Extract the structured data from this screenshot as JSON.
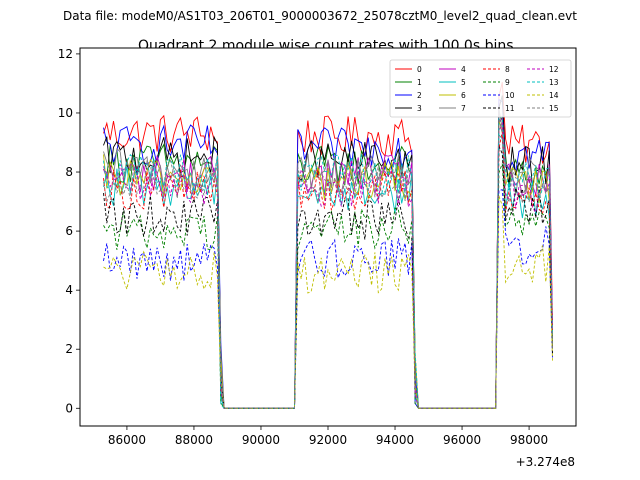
{
  "chart_data": {
    "type": "line",
    "suptitle": "Data file: modeM0/AS1T03_206T01_9000003672_25078cztM0_level2_quad_clean.evt",
    "title": "Quadrant 2 module wise count rates with 100.0s bins.",
    "xlabel": "",
    "ylabel": "",
    "x_offset_label": "+3.274e8",
    "xlim": [
      84600,
      99400
    ],
    "ylim": [
      -0.6,
      12.2
    ],
    "x_ticks": [
      86000,
      88000,
      90000,
      92000,
      94000,
      96000,
      98000
    ],
    "x_tick_labels": [
      "86000",
      "88000",
      "90000",
      "92000",
      "94000",
      "96000",
      "98000"
    ],
    "y_ticks": [
      0,
      2,
      4,
      6,
      8,
      10,
      12
    ],
    "y_tick_labels": [
      "0",
      "2",
      "4",
      "6",
      "8",
      "10",
      "12"
    ],
    "bin_seconds": 100,
    "segments": [
      {
        "start": 85300,
        "end": 88800
      },
      {
        "start": 91100,
        "end": 94600
      },
      {
        "start": 97100,
        "end": 98700
      }
    ],
    "gap_level": 0,
    "series": [
      {
        "name": "0",
        "color": "#ff0000",
        "dash": "solid",
        "base": [
          9.3,
          9.2,
          8.9
        ]
      },
      {
        "name": "1",
        "color": "#008000",
        "dash": "solid",
        "base": [
          8.3,
          8.2,
          7.9
        ]
      },
      {
        "name": "2",
        "color": "#0000ff",
        "dash": "solid",
        "base": [
          8.9,
          8.8,
          8.6
        ]
      },
      {
        "name": "3",
        "color": "#000000",
        "dash": "solid",
        "base": [
          8.5,
          8.4,
          8.2
        ]
      },
      {
        "name": "4",
        "color": "#bf00bf",
        "dash": "solid",
        "base": [
          7.9,
          7.9,
          7.6
        ]
      },
      {
        "name": "5",
        "color": "#00bfbf",
        "dash": "solid",
        "base": [
          7.5,
          7.3,
          7.1
        ]
      },
      {
        "name": "6",
        "color": "#bfbf00",
        "dash": "solid",
        "base": [
          7.8,
          7.7,
          7.5
        ]
      },
      {
        "name": "7",
        "color": "#808080",
        "dash": "solid",
        "base": [
          8.1,
          8.0,
          7.8
        ]
      },
      {
        "name": "8",
        "color": "#ff0000",
        "dash": "dashed",
        "base": [
          7.4,
          7.4,
          7.1
        ]
      },
      {
        "name": "9",
        "color": "#008000",
        "dash": "dashed",
        "base": [
          6.0,
          6.1,
          6.2
        ]
      },
      {
        "name": "10",
        "color": "#0000ff",
        "dash": "dashed",
        "base": [
          5.0,
          5.1,
          5.5
        ]
      },
      {
        "name": "11",
        "color": "#000000",
        "dash": "dashed",
        "base": [
          6.5,
          6.4,
          6.9
        ]
      },
      {
        "name": "12",
        "color": "#bf00bf",
        "dash": "dashed",
        "base": [
          7.6,
          7.5,
          7.3
        ]
      },
      {
        "name": "13",
        "color": "#00bfbf",
        "dash": "dashed",
        "base": [
          8.0,
          7.9,
          7.7
        ]
      },
      {
        "name": "14",
        "color": "#bfbf00",
        "dash": "dashed",
        "base": [
          4.6,
          4.6,
          4.9
        ]
      },
      {
        "name": "15",
        "color": "#808080",
        "dash": "dashed",
        "base": [
          7.7,
          7.6,
          7.5
        ]
      }
    ]
  }
}
